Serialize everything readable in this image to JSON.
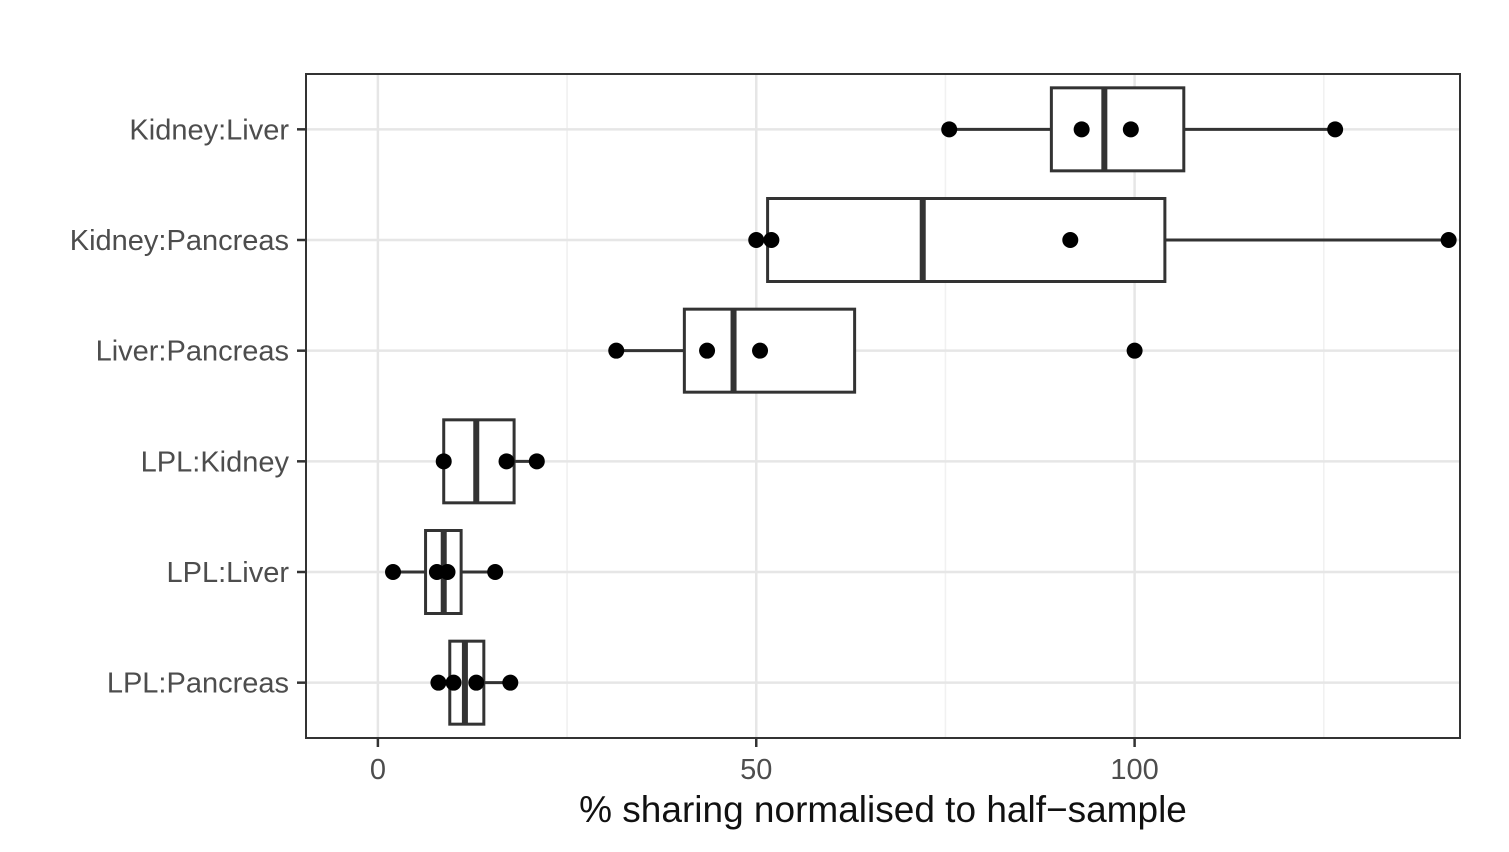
{
  "chart_data": {
    "type": "boxplot",
    "orientation": "horizontal",
    "title": "",
    "xlabel": "% sharing normalised to half−sample",
    "ylabel": "",
    "xlim": [
      -9.5,
      143
    ],
    "x_ticks": [
      0,
      50,
      100
    ],
    "x_tick_labels": [
      "0",
      "50",
      "100"
    ],
    "minor_x_ticks": [
      25,
      75,
      125
    ],
    "grid": true,
    "legend": "none",
    "categories": [
      "Kidney:Liver",
      "Kidney:Pancreas",
      "Liver:Pancreas",
      "LPL:Kidney",
      "LPL:Liver",
      "LPL:Pancreas"
    ],
    "boxes": [
      {
        "category": "Kidney:Liver",
        "whisker_low": 75.5,
        "q1": 89,
        "median": 96,
        "q3": 106.5,
        "whisker_high": 126.5,
        "points": [
          75.5,
          93,
          99.5,
          126.5
        ]
      },
      {
        "category": "Kidney:Pancreas",
        "whisker_low": 50,
        "q1": 51.5,
        "median": 72,
        "q3": 104,
        "whisker_high": 141.5,
        "points": [
          50,
          52,
          91.5,
          141.5
        ]
      },
      {
        "category": "Liver:Pancreas",
        "whisker_low": 31.5,
        "q1": 40.5,
        "median": 47,
        "q3": 63,
        "whisker_high": 63,
        "points": [
          31.5,
          43.5,
          50.5,
          100
        ]
      },
      {
        "category": "LPL:Kidney",
        "whisker_low": 8.7,
        "q1": 8.7,
        "median": 13,
        "q3": 18,
        "whisker_high": 21,
        "points": [
          8.7,
          17,
          21
        ]
      },
      {
        "category": "LPL:Liver",
        "whisker_low": 2,
        "q1": 6.3,
        "median": 8.7,
        "q3": 11,
        "whisker_high": 15.5,
        "points": [
          2,
          7.8,
          9.2,
          15.5
        ]
      },
      {
        "category": "LPL:Pancreas",
        "whisker_low": 8,
        "q1": 9.5,
        "median": 11.5,
        "q3": 14,
        "whisker_high": 17.5,
        "points": [
          8,
          10,
          13,
          17.5
        ]
      }
    ]
  }
}
